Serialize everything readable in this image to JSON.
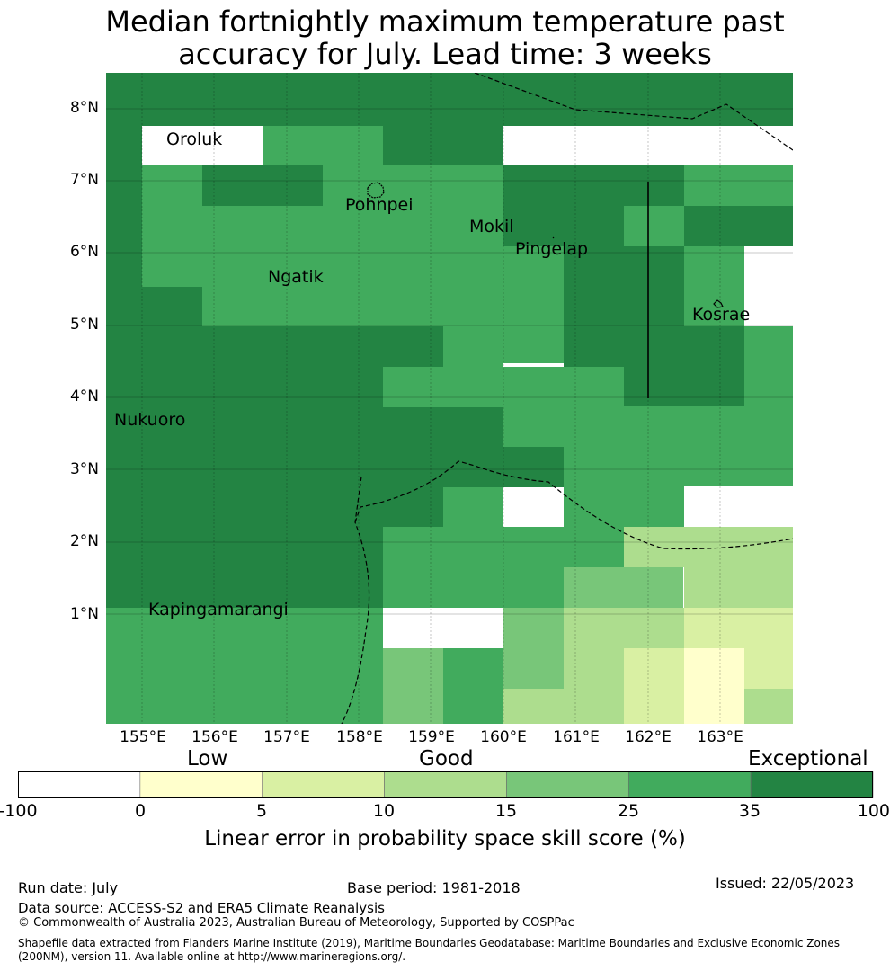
{
  "title": {
    "line1": "Median fortnightly maximum temperature past",
    "line2": "accuracy for July. Lead time: 3 weeks"
  },
  "map": {
    "lat_labels": [
      "8°N",
      "7°N",
      "6°N",
      "5°N",
      "4°N",
      "3°N",
      "2°N",
      "1°N"
    ],
    "lon_labels": [
      "155°E",
      "156°E",
      "157°E",
      "158°E",
      "159°E",
      "160°E",
      "161°E",
      "162°E",
      "163°E"
    ],
    "places": [
      "Oroluk",
      "Pohnpei",
      "Mokil",
      "Pingelap",
      "Ngatik",
      "Kosrae",
      "Nukuoro",
      "Kapingamarangi"
    ]
  },
  "legend": {
    "categories": [
      "Low",
      "Good",
      "Exceptional"
    ],
    "ticks": [
      "-100",
      "0",
      "5",
      "10",
      "15",
      "25",
      "35",
      "100"
    ],
    "colors": [
      "#ffffff",
      "#ffffcc",
      "#d9f0a3",
      "#addd8e",
      "#78c679",
      "#41ab5d",
      "#238443"
    ],
    "title": "Linear error in probability space skill score (%)"
  },
  "footer": {
    "run_date": "Run date: July",
    "base_period": "Base period: 1981-2018",
    "issued": "Issued: 22/05/2023",
    "data_source": "Data source: ACCESS-S2 and ERA5 Climate Reanalysis",
    "copyright": "© Commonwealth of Australia 2023, Australian Bureau of Meteorology, Supported by COSPPac",
    "shapefile_line1": "Shapefile data extracted from Flanders Marine Institute (2019), Maritime Boundaries Geodatabase: Maritime Boundaries and Exclusive Economic Zones",
    "shapefile_line2": "(200NM), version 11. Available online at http://www.marineregions.org/."
  }
}
